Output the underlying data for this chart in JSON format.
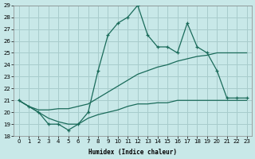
{
  "xlabel": "Humidex (Indice chaleur)",
  "background_color": "#c8e8e8",
  "grid_color": "#a8cccc",
  "line_color": "#1a6b5a",
  "hours": [
    0,
    1,
    2,
    3,
    4,
    5,
    6,
    7,
    8,
    9,
    10,
    11,
    12,
    13,
    14,
    15,
    16,
    17,
    18,
    19,
    20,
    21,
    22,
    23
  ],
  "max_vals": [
    21.0,
    20.5,
    20.0,
    19.0,
    19.0,
    18.5,
    19.0,
    20.0,
    23.5,
    26.5,
    27.5,
    28.0,
    29.0,
    26.5,
    25.5,
    25.5,
    25.0,
    27.5,
    25.5,
    25.0,
    23.5,
    21.2,
    21.2,
    21.2
  ],
  "mean_vals": [
    21.0,
    20.5,
    20.2,
    20.2,
    20.3,
    20.3,
    20.5,
    20.7,
    21.2,
    21.7,
    22.2,
    22.7,
    23.2,
    23.5,
    23.8,
    24.0,
    24.3,
    24.5,
    24.7,
    24.8,
    25.0,
    25.0,
    25.0,
    25.0
  ],
  "min_vals": [
    21.0,
    20.5,
    20.0,
    19.5,
    19.2,
    19.0,
    19.0,
    19.5,
    19.8,
    20.0,
    20.2,
    20.5,
    20.7,
    20.7,
    20.8,
    20.8,
    21.0,
    21.0,
    21.0,
    21.0,
    21.0,
    21.0,
    21.0,
    21.0
  ],
  "ylim": [
    18,
    29
  ],
  "yticks": [
    18,
    19,
    20,
    21,
    22,
    23,
    24,
    25,
    26,
    27,
    28,
    29
  ],
  "xticks": [
    0,
    1,
    2,
    3,
    4,
    5,
    6,
    7,
    8,
    9,
    10,
    11,
    12,
    13,
    14,
    15,
    16,
    17,
    18,
    19,
    20,
    21,
    22,
    23
  ]
}
